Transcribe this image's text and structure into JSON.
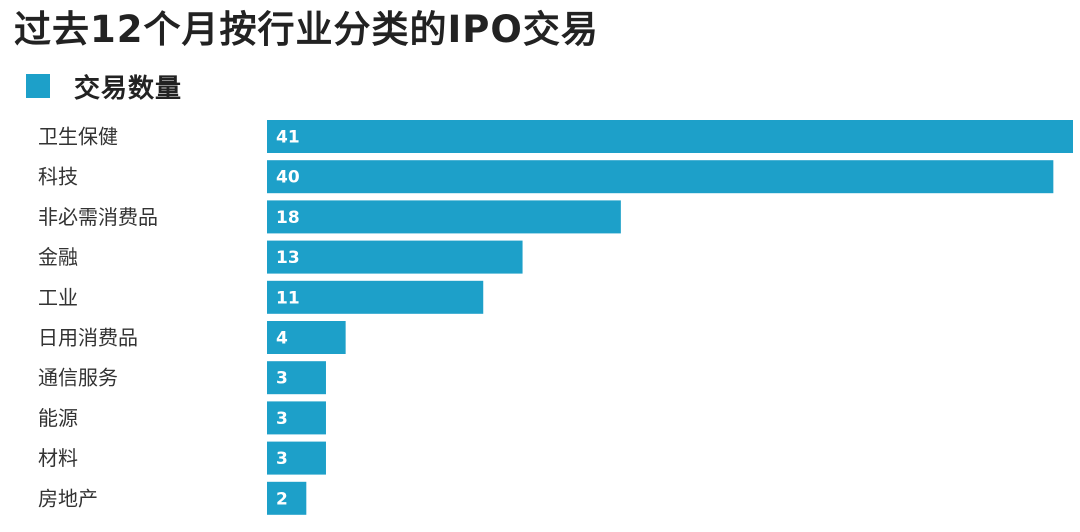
{
  "chart_data": {
    "type": "bar",
    "orientation": "horizontal",
    "title": "过去12个月按行业分类的IPO交易",
    "legend": "top-left",
    "series": [
      {
        "name": "交易数量",
        "color": "#1da0c9",
        "values": [
          41,
          40,
          18,
          13,
          11,
          4,
          3,
          3,
          3,
          2
        ]
      }
    ],
    "categories": [
      "卫生保健",
      "科技",
      "非必需消费品",
      "金融",
      "工业",
      "日用消费品",
      "通信服务",
      "能源",
      "材料",
      "房地产"
    ],
    "xlim": [
      0,
      41
    ],
    "grid": false,
    "data_labels": true
  }
}
